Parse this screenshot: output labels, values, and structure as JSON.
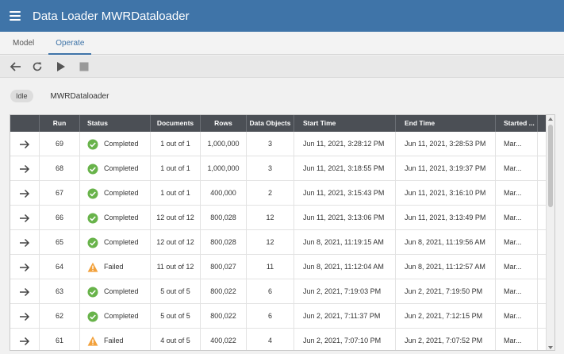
{
  "app": {
    "title": "Data Loader MWRDataloader"
  },
  "tabs": [
    {
      "label": "Model"
    },
    {
      "label": "Operate"
    }
  ],
  "toolbar": {
    "icons": [
      "back-arrow-icon",
      "refresh-icon",
      "play-icon",
      "stop-icon"
    ]
  },
  "info": {
    "status": "Idle",
    "name": "MWRDataloader"
  },
  "colors": {
    "header": "#3f74a8",
    "grid_header": "#4b4f55",
    "success": "#68b34a",
    "warning": "#f2a13b"
  },
  "table": {
    "columns": [
      "",
      "Run",
      "Status",
      "Documents",
      "Rows",
      "Data Objects",
      "Start Time",
      "End Time",
      "Started ..."
    ],
    "rows": [
      {
        "run": "69",
        "status": "Completed",
        "documents": "1 out of 1",
        "rows": "1,000,000",
        "data_objects": "3",
        "start": "Jun 11, 2021, 3:28:12 PM",
        "end": "Jun 11, 2021, 3:28:53 PM",
        "started_by": "Mar..."
      },
      {
        "run": "68",
        "status": "Completed",
        "documents": "1 out of 1",
        "rows": "1,000,000",
        "data_objects": "3",
        "start": "Jun 11, 2021, 3:18:55 PM",
        "end": "Jun 11, 2021, 3:19:37 PM",
        "started_by": "Mar..."
      },
      {
        "run": "67",
        "status": "Completed",
        "documents": "1 out of 1",
        "rows": "400,000",
        "data_objects": "2",
        "start": "Jun 11, 2021, 3:15:43 PM",
        "end": "Jun 11, 2021, 3:16:10 PM",
        "started_by": "Mar..."
      },
      {
        "run": "66",
        "status": "Completed",
        "documents": "12 out of 12",
        "rows": "800,028",
        "data_objects": "12",
        "start": "Jun 11, 2021, 3:13:06 PM",
        "end": "Jun 11, 2021, 3:13:49 PM",
        "started_by": "Mar..."
      },
      {
        "run": "65",
        "status": "Completed",
        "documents": "12 out of 12",
        "rows": "800,028",
        "data_objects": "12",
        "start": "Jun 8, 2021, 11:19:15 AM",
        "end": "Jun 8, 2021, 11:19:56 AM",
        "started_by": "Mar..."
      },
      {
        "run": "64",
        "status": "Failed",
        "documents": "11 out of 12",
        "rows": "800,027",
        "data_objects": "11",
        "start": "Jun 8, 2021, 11:12:04 AM",
        "end": "Jun 8, 2021, 11:12:57 AM",
        "started_by": "Mar..."
      },
      {
        "run": "63",
        "status": "Completed",
        "documents": "5 out of 5",
        "rows": "800,022",
        "data_objects": "6",
        "start": "Jun 2, 2021, 7:19:03 PM",
        "end": "Jun 2, 2021, 7:19:50 PM",
        "started_by": "Mar..."
      },
      {
        "run": "62",
        "status": "Completed",
        "documents": "5 out of 5",
        "rows": "800,022",
        "data_objects": "6",
        "start": "Jun 2, 2021, 7:11:37 PM",
        "end": "Jun 2, 2021, 7:12:15 PM",
        "started_by": "Mar..."
      },
      {
        "run": "61",
        "status": "Failed",
        "documents": "4 out of 5",
        "rows": "400,022",
        "data_objects": "4",
        "start": "Jun 2, 2021, 7:07:10 PM",
        "end": "Jun 2, 2021, 7:07:52 PM",
        "started_by": "Mar..."
      }
    ]
  }
}
